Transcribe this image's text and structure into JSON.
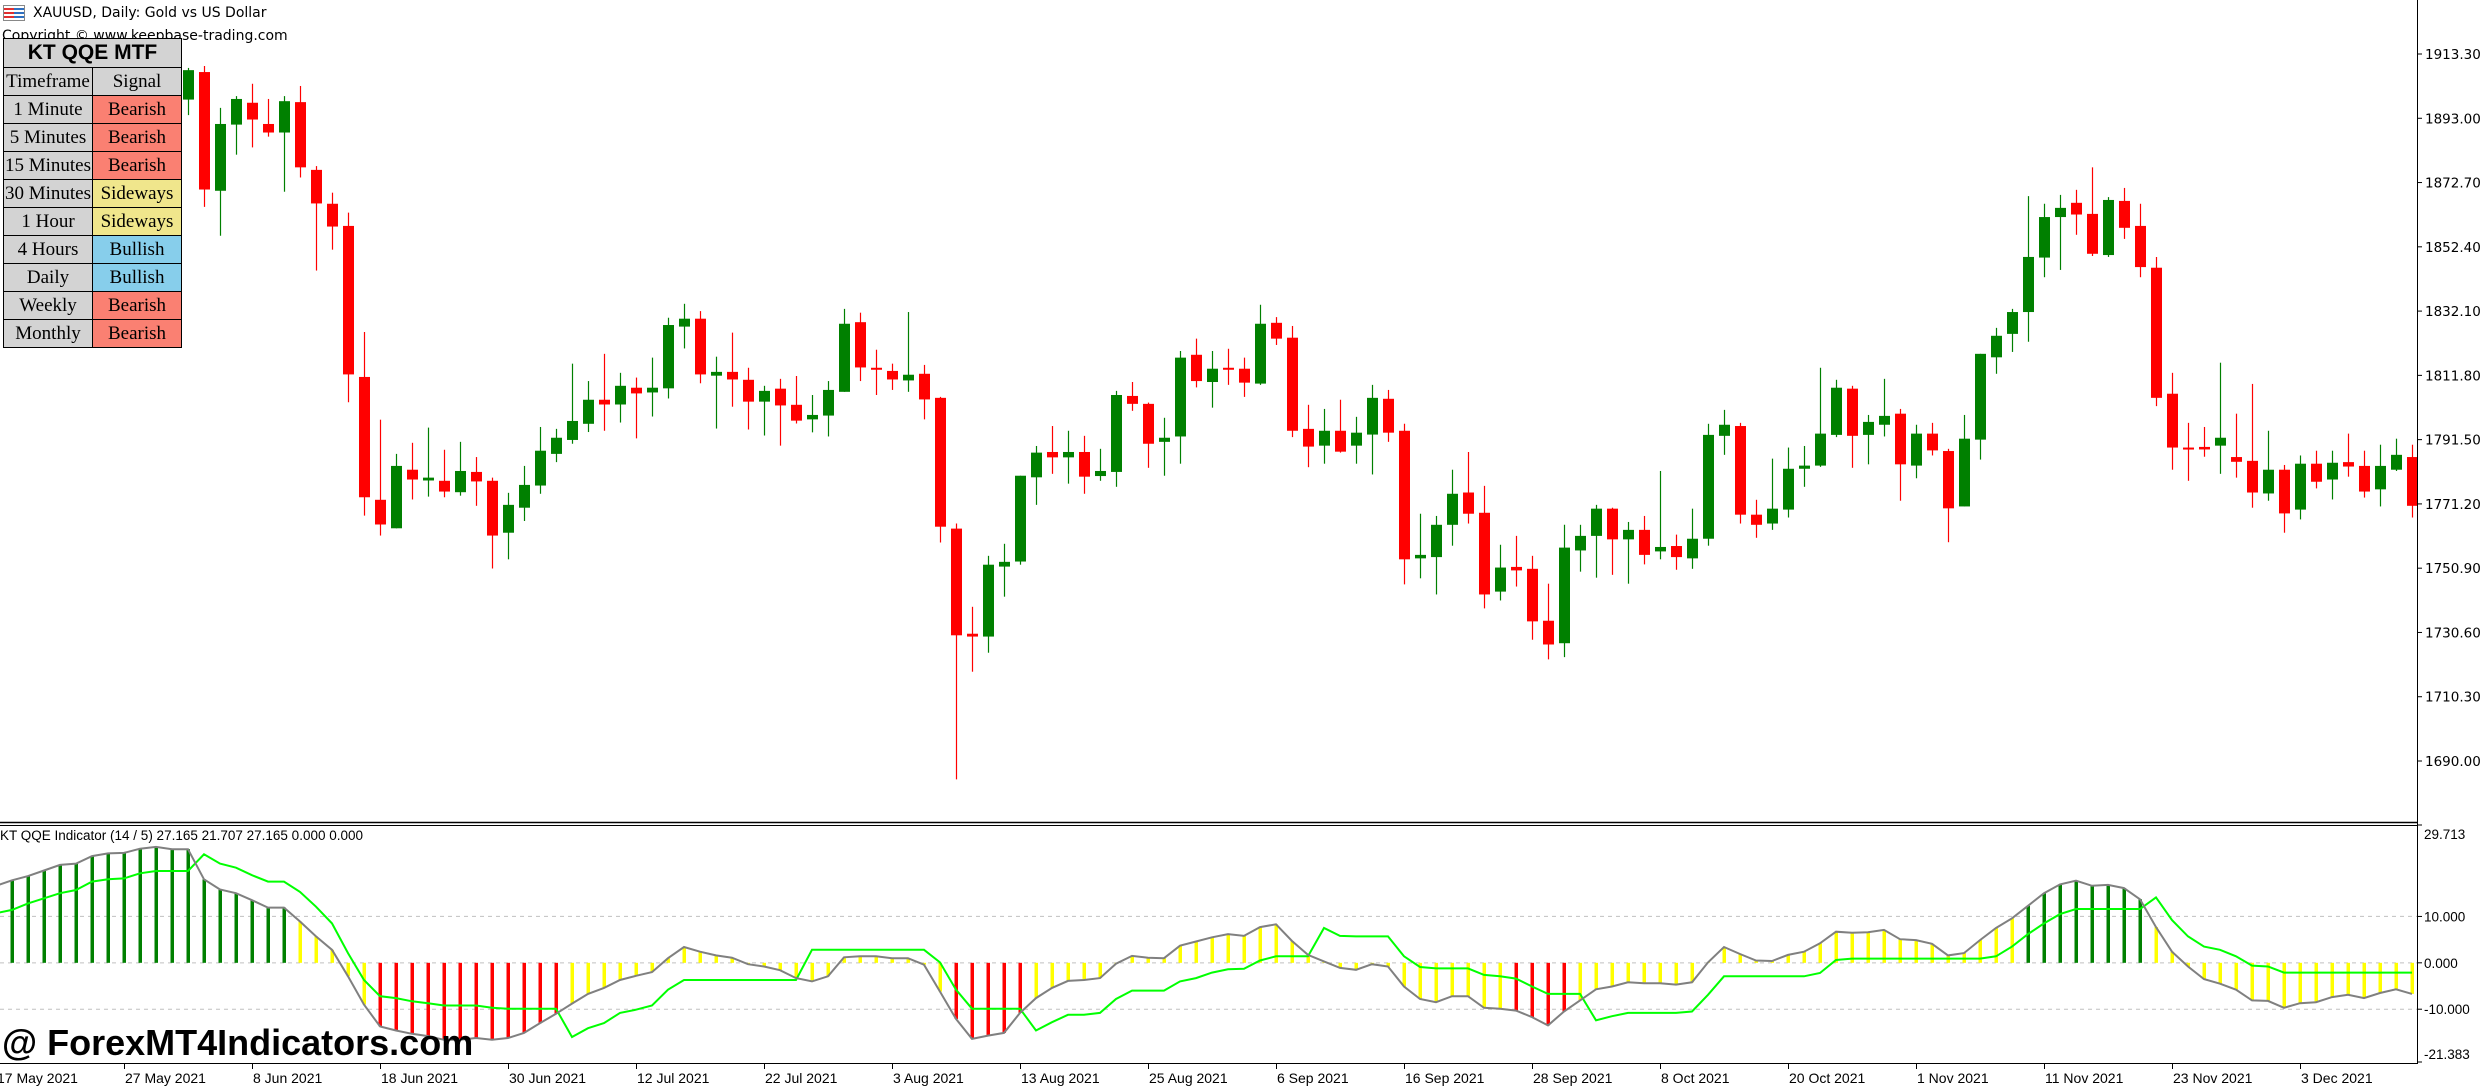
{
  "window": {
    "title": "XAUUSD, Daily:  Gold vs US Dollar",
    "copyright": "Copyright © www.keepbase-trading.com",
    "icon": "chart-window-icon"
  },
  "mtf_panel": {
    "title": "KT QQE MTF",
    "col_timeframe": "Timeframe",
    "col_signal": "Signal",
    "rows": [
      {
        "tf": "1 Minute",
        "signal": "Bearish"
      },
      {
        "tf": "5 Minutes",
        "signal": "Bearish"
      },
      {
        "tf": "15 Minutes",
        "signal": "Bearish"
      },
      {
        "tf": "30 Minutes",
        "signal": "Sideways"
      },
      {
        "tf": "1 Hour",
        "signal": "Sideways"
      },
      {
        "tf": "4 Hours",
        "signal": "Bullish"
      },
      {
        "tf": "Daily",
        "signal": "Bullish"
      },
      {
        "tf": "Weekly",
        "signal": "Bearish"
      },
      {
        "tf": "Monthly",
        "signal": "Bearish"
      }
    ],
    "signal_colors": {
      "Bearish": "#fa8072",
      "Sideways": "#f0e68c",
      "Bullish": "#87ceeb"
    }
  },
  "indicator_header": "KT QQE Indicator (14 / 5) 27.165 21.707 27.165 0.000 0.000",
  "watermark": "@ ForexMT4Indicators.com",
  "colors": {
    "bull_candle": "#008000",
    "bear_candle": "#ff0000",
    "hist_bull": "#008000",
    "hist_neutral": "#ffff00",
    "hist_bear": "#ff0000",
    "qqe_line": "#808080",
    "signal_line": "#00ff00",
    "grid": "#c0c0c0"
  },
  "chart_data": [
    {
      "type": "candlestick",
      "symbol": "XAUUSD",
      "timeframe": "Daily",
      "ylim": [
        1690.0,
        1913.3
      ],
      "y_ticks": [
        "1913.30",
        "1893.00",
        "1872.70",
        "1852.40",
        "1832.10",
        "1811.80",
        "1791.50",
        "1771.20",
        "1750.90",
        "1730.60",
        "1710.30",
        "1690.00"
      ],
      "x_tick_labels": [
        "17 May 2021",
        "27 May 2021",
        "8 Jun 2021",
        "18 Jun 2021",
        "30 Jun 2021",
        "12 Jul 2021",
        "22 Jul 2021",
        "3 Aug 2021",
        "13 Aug 2021",
        "25 Aug 2021",
        "6 Sep 2021",
        "16 Sep 2021",
        "28 Sep 2021",
        "8 Oct 2021",
        "20 Oct 2021",
        "1 Nov 2021",
        "11 Nov 2021",
        "23 Nov 2021",
        "3 Dec 2021"
      ],
      "ohlc": [
        null,
        null,
        null,
        null,
        null,
        null,
        null,
        null,
        null,
        null,
        null,
        null,
        [
          1898.9,
          1908.9,
          1894.0,
          1908.2
        ],
        [
          1907.6,
          1909.5,
          1865.0,
          1870.5
        ],
        [
          1870.1,
          1896.3,
          1855.9,
          1891.2
        ],
        [
          1891.0,
          1900.0,
          1881.5,
          1899.1
        ],
        [
          1897.9,
          1903.9,
          1883.8,
          1892.6
        ],
        [
          1891.2,
          1899.1,
          1887.2,
          1888.5
        ],
        [
          1888.5,
          1900.0,
          1869.8,
          1898.4
        ],
        [
          1898.1,
          1903.2,
          1874.3,
          1877.5
        ],
        [
          1876.7,
          1877.9,
          1844.9,
          1866.1
        ],
        [
          1866.0,
          1869.5,
          1851.5,
          1858.8
        ],
        [
          1859.0,
          1863.2,
          1803.3,
          1812.1
        ],
        [
          1811.3,
          1825.5,
          1767.5,
          1773.3
        ],
        [
          1772.5,
          1797.8,
          1761.2,
          1764.7
        ],
        [
          1763.5,
          1787.0,
          1763.5,
          1783.2
        ],
        [
          1782.0,
          1790.5,
          1772.6,
          1778.9
        ],
        [
          1778.6,
          1795.3,
          1773.5,
          1779.5
        ],
        [
          1778.5,
          1788.3,
          1773.3,
          1775.1
        ],
        [
          1774.9,
          1790.8,
          1773.8,
          1781.6
        ],
        [
          1781.3,
          1786.0,
          1770.6,
          1778.3
        ],
        [
          1778.5,
          1779.5,
          1750.8,
          1761.2
        ],
        [
          1762.1,
          1774.7,
          1753.7,
          1770.9
        ],
        [
          1770.0,
          1783.2,
          1765.8,
          1777.2
        ],
        [
          1777.0,
          1795.5,
          1774.4,
          1788.0
        ],
        [
          1787.0,
          1794.9,
          1784.4,
          1792.1
        ],
        [
          1791.4,
          1815.5,
          1790.2,
          1797.4
        ],
        [
          1796.5,
          1810.0,
          1793.9,
          1804.1
        ],
        [
          1804.1,
          1818.6,
          1794.3,
          1802.6
        ],
        [
          1802.6,
          1812.6,
          1796.9,
          1808.5
        ],
        [
          1807.9,
          1811.1,
          1791.9,
          1806.1
        ],
        [
          1806.4,
          1817.4,
          1798.8,
          1807.9
        ],
        [
          1807.7,
          1830.0,
          1804.5,
          1827.7
        ],
        [
          1827.2,
          1834.4,
          1820.3,
          1829.7
        ],
        [
          1829.7,
          1832.1,
          1809.3,
          1812.1
        ],
        [
          1811.7,
          1817.7,
          1795.0,
          1812.9
        ],
        [
          1812.9,
          1825.3,
          1801.9,
          1810.5
        ],
        [
          1810.4,
          1814.2,
          1794.7,
          1803.5
        ],
        [
          1803.5,
          1808.5,
          1792.8,
          1806.9
        ],
        [
          1807.6,
          1810.7,
          1789.6,
          1802.3
        ],
        [
          1802.5,
          1811.6,
          1796.6,
          1797.5
        ],
        [
          1797.9,
          1805.6,
          1793.8,
          1799.3
        ],
        [
          1799.1,
          1810.0,
          1792.5,
          1807.2
        ],
        [
          1806.6,
          1832.8,
          1806.6,
          1828.1
        ],
        [
          1828.6,
          1831.6,
          1810.0,
          1814.3
        ],
        [
          1814.2,
          1819.9,
          1805.6,
          1813.7
        ],
        [
          1813.2,
          1815.5,
          1807.2,
          1810.5
        ],
        [
          1810.2,
          1831.8,
          1806.6,
          1812.0
        ],
        [
          1812.3,
          1815.1,
          1797.9,
          1804.2
        ],
        [
          1804.7,
          1805.0,
          1759.0,
          1764.0
        ],
        [
          1763.4,
          1765.0,
          1684.2,
          1729.7
        ],
        [
          1730.2,
          1738.7,
          1718.2,
          1729.3
        ],
        [
          1729.3,
          1754.8,
          1724.2,
          1752.0
        ],
        [
          1751.4,
          1758.6,
          1741.9,
          1752.9
        ],
        [
          1753.0,
          1780.1,
          1752.0,
          1780.1
        ],
        [
          1779.6,
          1789.5,
          1770.9,
          1787.4
        ],
        [
          1787.6,
          1795.8,
          1780.7,
          1785.9
        ],
        [
          1785.9,
          1794.3,
          1777.6,
          1787.6
        ],
        [
          1787.6,
          1792.7,
          1774.4,
          1779.8
        ],
        [
          1780.0,
          1788.6,
          1778.5,
          1781.6
        ],
        [
          1781.3,
          1806.9,
          1776.6,
          1805.6
        ],
        [
          1805.3,
          1809.7,
          1800.6,
          1802.8
        ],
        [
          1802.8,
          1803.2,
          1782.6,
          1790.2
        ],
        [
          1790.8,
          1798.4,
          1780.1,
          1792.1
        ],
        [
          1792.5,
          1819.5,
          1783.9,
          1817.4
        ],
        [
          1818.3,
          1823.4,
          1808.0,
          1810.0
        ],
        [
          1809.7,
          1819.5,
          1801.6,
          1813.9
        ],
        [
          1814.2,
          1820.2,
          1808.8,
          1813.9
        ],
        [
          1813.9,
          1817.4,
          1805.0,
          1809.5
        ],
        [
          1809.2,
          1834.1,
          1808.8,
          1828.1
        ],
        [
          1828.4,
          1830.2,
          1821.4,
          1823.4
        ],
        [
          1823.7,
          1827.4,
          1792.3,
          1794.3
        ],
        [
          1794.9,
          1802.5,
          1782.8,
          1789.3
        ],
        [
          1789.6,
          1801.2,
          1783.9,
          1794.3
        ],
        [
          1794.3,
          1804.1,
          1787.4,
          1787.7
        ],
        [
          1789.6,
          1798.7,
          1783.9,
          1793.7
        ],
        [
          1793.1,
          1808.8,
          1780.5,
          1804.7
        ],
        [
          1804.4,
          1807.2,
          1790.8,
          1793.7
        ],
        [
          1794.3,
          1796.5,
          1745.8,
          1753.7
        ],
        [
          1754.0,
          1768.1,
          1747.7,
          1755.1
        ],
        [
          1754.4,
          1767.4,
          1742.6,
          1764.6
        ],
        [
          1764.6,
          1782.0,
          1758.0,
          1774.4
        ],
        [
          1774.8,
          1787.6,
          1765.0,
          1768.1
        ],
        [
          1768.4,
          1776.9,
          1738.2,
          1742.6
        ],
        [
          1743.5,
          1758.3,
          1740.7,
          1751.1
        ],
        [
          1751.3,
          1761.1,
          1745.1,
          1750.2
        ],
        [
          1750.7,
          1754.8,
          1728.3,
          1734.1
        ],
        [
          1734.3,
          1746.0,
          1722.1,
          1726.8
        ],
        [
          1727.2,
          1764.6,
          1722.8,
          1757.4
        ],
        [
          1756.5,
          1764.6,
          1749.8,
          1761.1
        ],
        [
          1761.1,
          1770.9,
          1747.9,
          1769.7
        ],
        [
          1769.7,
          1770.0,
          1748.8,
          1760.0
        ],
        [
          1760.0,
          1765.5,
          1746.0,
          1763.0
        ],
        [
          1763.0,
          1767.4,
          1752.1,
          1755.1
        ],
        [
          1756.2,
          1781.6,
          1753.7,
          1757.6
        ],
        [
          1757.9,
          1761.5,
          1750.4,
          1754.4
        ],
        [
          1754.0,
          1769.7,
          1750.7,
          1760.2
        ],
        [
          1760.2,
          1796.5,
          1758.0,
          1793.0
        ],
        [
          1792.7,
          1800.9,
          1786.7,
          1796.2
        ],
        [
          1795.8,
          1796.8,
          1765.0,
          1767.8
        ],
        [
          1767.8,
          1772.5,
          1760.5,
          1764.6
        ],
        [
          1765.0,
          1785.5,
          1763.0,
          1769.7
        ],
        [
          1769.4,
          1789.0,
          1766.9,
          1782.3
        ],
        [
          1782.3,
          1789.5,
          1776.6,
          1783.3
        ],
        [
          1783.3,
          1814.2,
          1782.9,
          1793.4
        ],
        [
          1793.0,
          1810.4,
          1792.3,
          1807.9
        ],
        [
          1807.6,
          1808.5,
          1782.6,
          1792.7
        ],
        [
          1793.0,
          1799.3,
          1783.7,
          1797.1
        ],
        [
          1796.2,
          1810.7,
          1792.5,
          1799.0
        ],
        [
          1799.7,
          1801.2,
          1772.2,
          1783.7
        ],
        [
          1783.3,
          1796.2,
          1779.3,
          1793.4
        ],
        [
          1793.4,
          1796.8,
          1786.5,
          1788.1
        ],
        [
          1787.9,
          1788.6,
          1759.1,
          1769.8
        ],
        [
          1770.4,
          1799.3,
          1770.4,
          1791.8
        ],
        [
          1791.5,
          1818.6,
          1785.2,
          1818.6
        ],
        [
          1817.5,
          1826.8,
          1812.3,
          1824.3
        ],
        [
          1824.9,
          1832.8,
          1819.2,
          1831.8
        ],
        [
          1831.8,
          1868.4,
          1822.4,
          1849.2
        ],
        [
          1849.0,
          1866.0,
          1842.8,
          1861.8
        ],
        [
          1861.8,
          1868.8,
          1845.1,
          1864.7
        ],
        [
          1866.3,
          1870.4,
          1856.2,
          1862.6
        ],
        [
          1862.8,
          1877.5,
          1849.5,
          1850.2
        ],
        [
          1849.8,
          1868.1,
          1849.2,
          1867.2
        ],
        [
          1866.9,
          1871.0,
          1854.9,
          1858.4
        ],
        [
          1859.0,
          1866.0,
          1842.8,
          1846.0
        ],
        [
          1845.8,
          1849.2,
          1802.1,
          1804.7
        ],
        [
          1806.0,
          1812.6,
          1782.0,
          1789.0
        ],
        [
          1789.0,
          1796.8,
          1778.5,
          1788.4
        ],
        [
          1789.2,
          1795.5,
          1786.1,
          1788.4
        ],
        [
          1789.6,
          1815.8,
          1780.7,
          1792.1
        ],
        [
          1786.0,
          1799.7,
          1779.5,
          1784.5
        ],
        [
          1784.8,
          1809.1,
          1770.0,
          1774.8
        ],
        [
          1774.5,
          1794.3,
          1772.2,
          1782.0
        ],
        [
          1782.0,
          1783.5,
          1762.1,
          1768.2
        ],
        [
          1769.4,
          1786.5,
          1766.3,
          1783.9
        ],
        [
          1783.9,
          1788.0,
          1776.1,
          1778.2
        ],
        [
          1778.9,
          1788.0,
          1772.6,
          1784.2
        ],
        [
          1784.4,
          1793.4,
          1779.8,
          1783.0
        ],
        [
          1783.2,
          1788.0,
          1773.2,
          1775.1
        ],
        [
          1775.8,
          1789.9,
          1770.4,
          1783.2
        ],
        [
          1782.0,
          1791.8,
          1781.6,
          1786.7
        ],
        [
          1786.0,
          1789.9,
          1766.9,
          1770.6
        ]
      ]
    },
    {
      "type": "bar+line",
      "name": "KT QQE Indicator (14 / 5)",
      "ylim": [
        -21.383,
        29.713
      ],
      "y_ticks": [
        "29.713",
        "10.000",
        "0.000",
        "-10.000",
        "-21.383"
      ],
      "levels": [
        10,
        0,
        -10
      ],
      "histogram": [
        16.6,
        17.8,
        18.7,
        19.9,
        21.1,
        21.4,
        23.0,
        23.6,
        23.7,
        24.6,
        25.0,
        24.5,
        24.5,
        18.0,
        15.8,
        15.0,
        13.5,
        11.9,
        11.9,
        8.9,
        5.7,
        2.8,
        -2.9,
        -9.0,
        -13.7,
        -14.6,
        -15.3,
        -15.8,
        -16.6,
        -16.6,
        -16.2,
        -16.6,
        -16.2,
        -15.1,
        -13.0,
        -11.0,
        -8.8,
        -6.7,
        -5.4,
        -3.7,
        -2.8,
        -2.0,
        1.0,
        3.4,
        2.4,
        1.6,
        1.1,
        -0.3,
        -0.8,
        -1.6,
        -3.3,
        -4.0,
        -2.9,
        1.2,
        1.4,
        1.4,
        1.0,
        1.0,
        -0.4,
        -6.2,
        -12.1,
        -16.4,
        -15.7,
        -15.1,
        -10.8,
        -7.6,
        -5.4,
        -3.9,
        -3.7,
        -3.3,
        -0.2,
        1.5,
        1.1,
        1.0,
        3.7,
        4.6,
        5.5,
        6.2,
        5.8,
        7.7,
        8.3,
        4.7,
        1.7,
        0.3,
        -1.1,
        -1.5,
        -0.3,
        -0.8,
        -5.1,
        -7.8,
        -8.5,
        -7.2,
        -7.2,
        -9.7,
        -9.9,
        -10.3,
        -11.7,
        -13.5,
        -10.5,
        -8.1,
        -5.7,
        -5.1,
        -4.2,
        -4.4,
        -4.4,
        -4.7,
        -4.2,
        0.1,
        3.4,
        1.9,
        0.5,
        0.4,
        1.7,
        2.4,
        4.2,
        6.7,
        6.5,
        6.6,
        7.1,
        5.1,
        4.9,
        4.1,
        1.6,
        2.1,
        4.9,
        7.5,
        9.6,
        12.3,
        15.0,
        16.9,
        17.7,
        16.6,
        16.8,
        16.1,
        13.7,
        7.7,
        2.4,
        -0.8,
        -3.5,
        -4.5,
        -5.8,
        -8.1,
        -8.2,
        -9.7,
        -8.7,
        -8.5,
        -7.4,
        -6.9,
        -7.6,
        -6.5,
        -5.7,
        -6.7
      ],
      "signal": [
        10.7,
        11.4,
        12.8,
        13.9,
        15.0,
        15.7,
        17.5,
        18.0,
        18.2,
        19.3,
        19.8,
        19.8,
        19.8,
        23.4,
        21.4,
        20.5,
        18.9,
        17.5,
        17.5,
        15.3,
        12.1,
        8.5,
        2.1,
        -3.7,
        -7.2,
        -7.6,
        -8.3,
        -8.7,
        -9.2,
        -9.2,
        -9.2,
        -9.7,
        -9.9,
        -9.9,
        -9.9,
        -9.9,
        -16.0,
        -14.1,
        -13.0,
        -10.8,
        -10.1,
        -9.2,
        -5.8,
        -3.7,
        -3.7,
        -3.7,
        -3.7,
        -3.7,
        -3.7,
        -3.7,
        -3.7,
        2.8,
        2.8,
        2.8,
        2.8,
        2.8,
        2.8,
        2.8,
        2.8,
        0.1,
        -5.8,
        -9.9,
        -9.9,
        -9.9,
        -9.9,
        -14.6,
        -12.8,
        -11.2,
        -11.2,
        -10.8,
        -7.8,
        -6.0,
        -6.0,
        -6.0,
        -4.0,
        -3.3,
        -2.1,
        -1.4,
        -1.3,
        0.5,
        1.4,
        1.4,
        1.4,
        7.5,
        5.8,
        5.7,
        5.7,
        5.7,
        1.4,
        -0.9,
        -1.2,
        -1.2,
        -1.2,
        -2.6,
        -2.9,
        -3.4,
        -5.1,
        -6.7,
        -6.7,
        -6.7,
        -12.4,
        -11.5,
        -10.8,
        -10.8,
        -10.8,
        -10.8,
        -10.5,
        -6.9,
        -2.9,
        -2.9,
        -2.9,
        -2.9,
        -2.9,
        -2.9,
        -2.2,
        0.6,
        0.9,
        0.9,
        0.9,
        0.9,
        0.9,
        0.9,
        0.9,
        0.9,
        0.9,
        1.4,
        3.5,
        6.2,
        8.5,
        10.5,
        11.6,
        11.6,
        11.6,
        11.6,
        11.6,
        14.1,
        9.2,
        5.7,
        3.5,
        2.8,
        1.4,
        -0.6,
        -0.8,
        -2.1,
        -2.1,
        -2.1,
        -2.1,
        -2.1,
        -2.1,
        -2.1,
        -2.1,
        -2.1
      ]
    }
  ]
}
